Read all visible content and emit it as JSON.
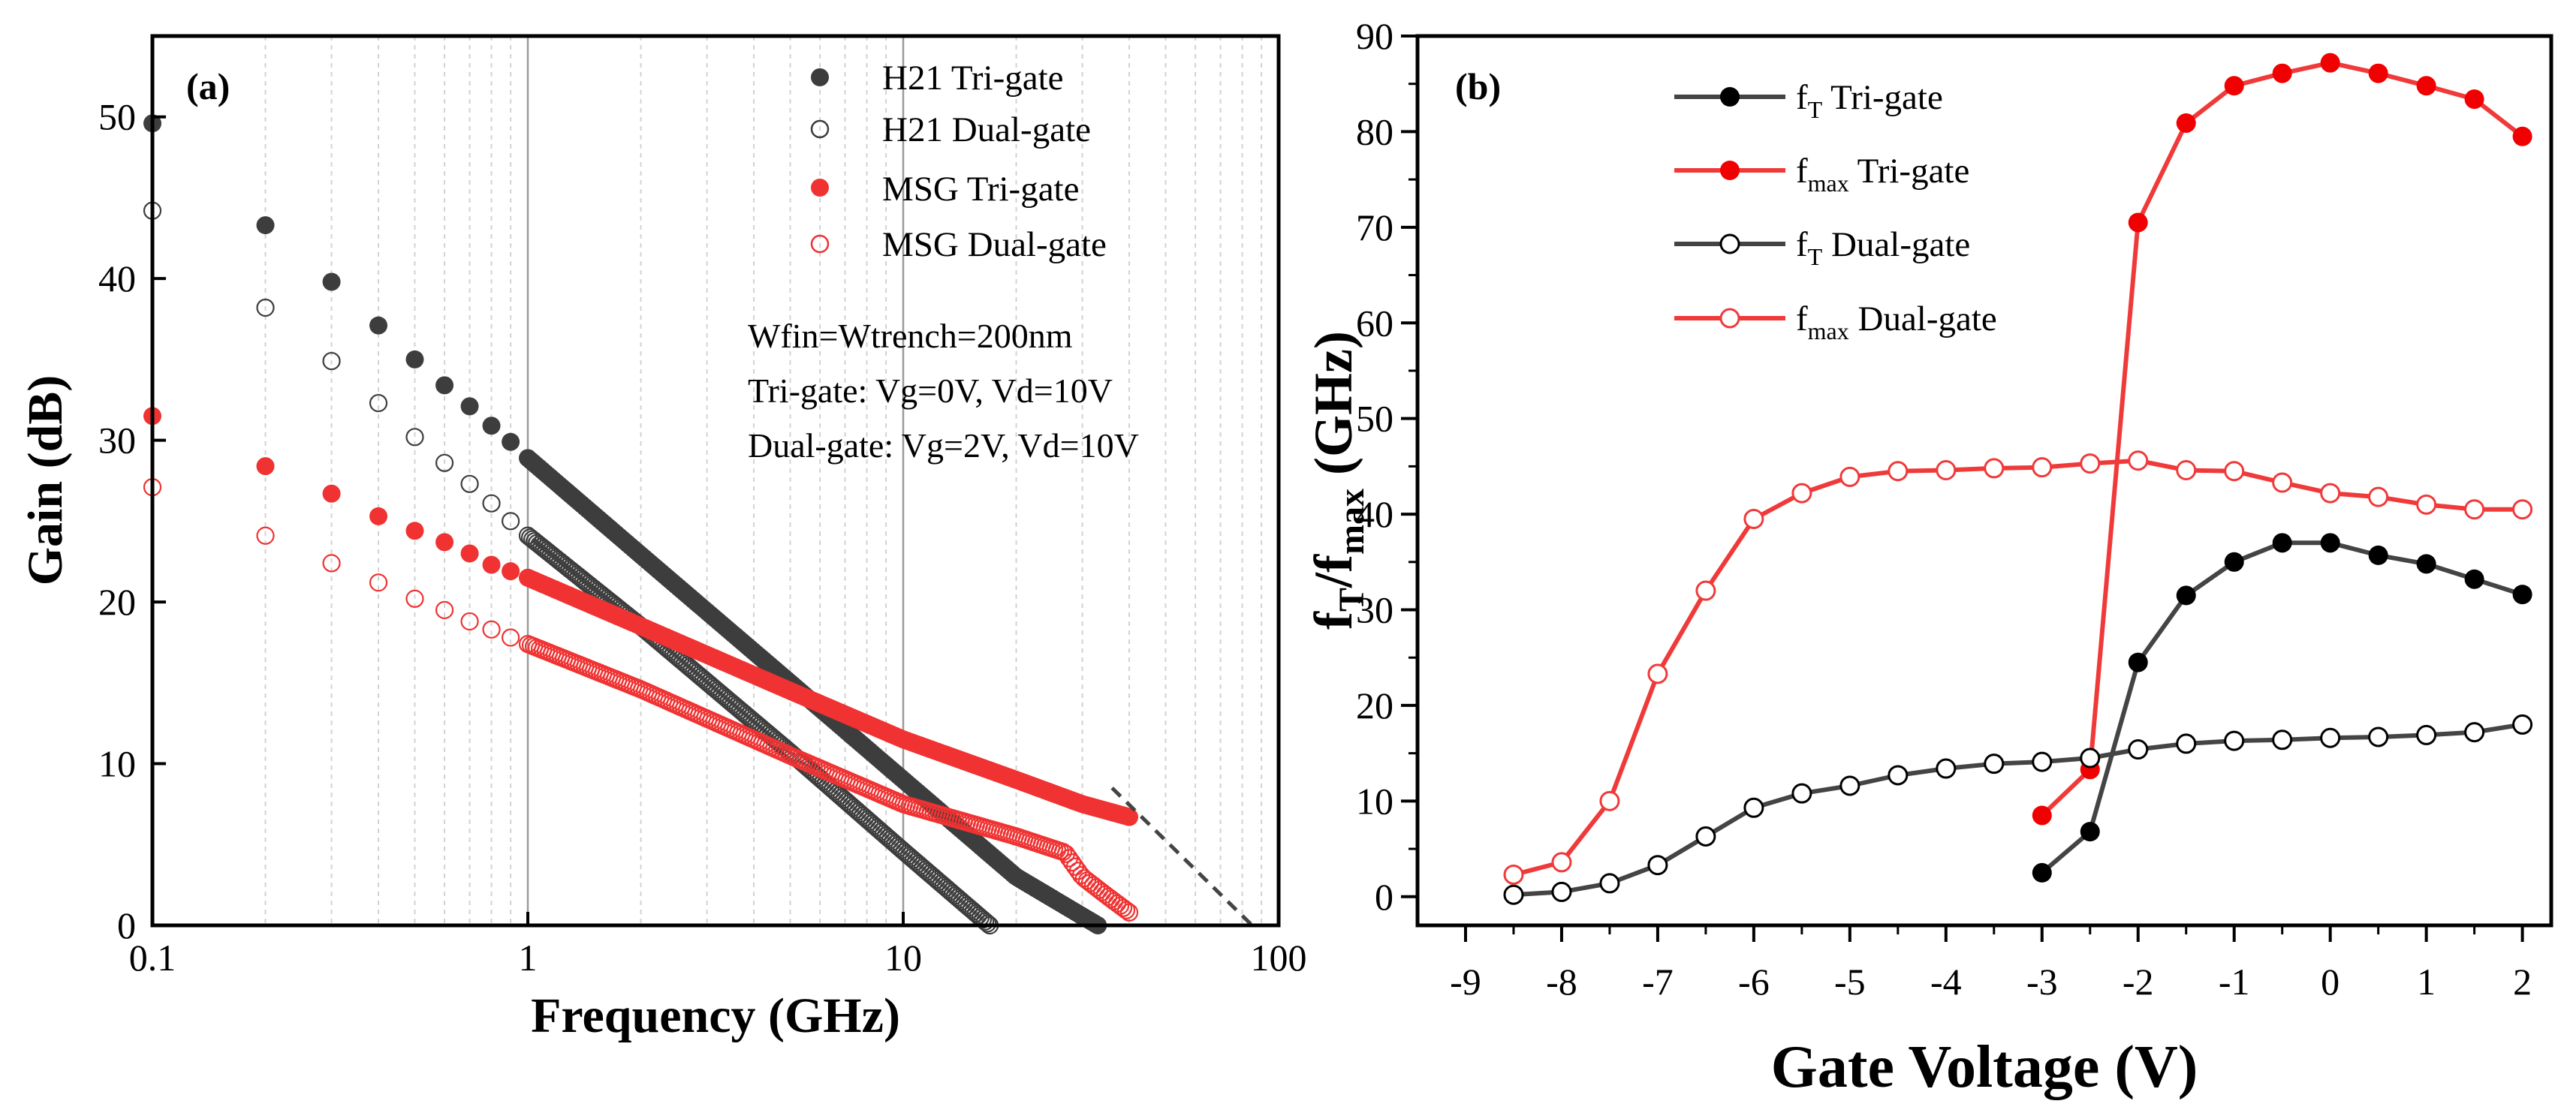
{
  "colors": {
    "tri_gate_h21": "#3d3d3d",
    "dual_gate_h21": "#3d3d3d",
    "msg": "#f03232",
    "ft_line": "#444444",
    "fmax_line": "#f03a3a",
    "grid": "#cfcfcf"
  },
  "chart_data": [
    {
      "panel_label": "(a)",
      "type": "scatter",
      "x_scale": "log",
      "xlabel": "Frequency (GHz)",
      "ylabel": "Gain (dB)",
      "xlim": [
        0.1,
        100
      ],
      "ylim": [
        0,
        55
      ],
      "x_ticks": [
        0.1,
        1,
        10,
        100
      ],
      "x_tick_labels": [
        "0.1",
        "1",
        "10",
        "100"
      ],
      "y_ticks": [
        0,
        10,
        20,
        30,
        40,
        50
      ],
      "y_tick_labels": [
        "0",
        "10",
        "20",
        "30",
        "40",
        "50"
      ],
      "grid": "vertical, log minor",
      "legend_position": "top-right",
      "annotations": [
        "Wfin=Wtrench=200nm",
        "Tri-gate: Vg=0V, Vd=10V",
        "Dual-gate: Vg=2V, Vd=10V"
      ],
      "series": [
        {
          "name": "H21 Tri-gate",
          "marker": "filled",
          "color": "#3d3d3d",
          "x": [
            0.1,
            0.2,
            0.3,
            0.4,
            0.5,
            0.6,
            0.7,
            0.8,
            0.9,
            1.0,
            2.0,
            5.0,
            10.0,
            20.0,
            33.0
          ],
          "y": [
            49.6,
            43.3,
            39.8,
            37.1,
            35.0,
            33.4,
            32.1,
            30.9,
            29.9,
            28.9,
            22.9,
            15.0,
            9.0,
            3.0,
            0.0
          ]
        },
        {
          "name": "H21 Dual-gate",
          "marker": "open",
          "color": "#3d3d3d",
          "x": [
            0.1,
            0.2,
            0.3,
            0.4,
            0.5,
            0.6,
            0.7,
            0.8,
            0.9,
            1.0,
            2.0,
            5.0,
            10.0,
            17.0
          ],
          "y": [
            44.2,
            38.2,
            34.9,
            32.3,
            30.2,
            28.6,
            27.3,
            26.1,
            25.0,
            24.1,
            18.5,
            10.7,
            4.6,
            0.0
          ]
        },
        {
          "name": "MSG Tri-gate",
          "marker": "filled",
          "color": "#f03232",
          "x": [
            0.1,
            0.2,
            0.3,
            0.4,
            0.5,
            0.6,
            0.7,
            0.8,
            0.9,
            1.0,
            2.0,
            5.0,
            10.0,
            20.0,
            30.0,
            40.0
          ],
          "y": [
            31.5,
            28.4,
            26.7,
            25.3,
            24.4,
            23.7,
            23.0,
            22.3,
            21.9,
            21.5,
            18.5,
            14.5,
            11.5,
            9.0,
            7.5,
            6.7
          ]
        },
        {
          "name": "MSG Dual-gate",
          "marker": "open",
          "color": "#f03232",
          "x": [
            0.1,
            0.2,
            0.3,
            0.4,
            0.5,
            0.6,
            0.7,
            0.8,
            0.9,
            1.0,
            2.0,
            5.0,
            10.0,
            20.0,
            27.0,
            30.0,
            35.0,
            40.0
          ],
          "y": [
            27.1,
            24.1,
            22.4,
            21.2,
            20.2,
            19.5,
            18.8,
            18.3,
            17.8,
            17.4,
            14.6,
            10.5,
            7.5,
            5.5,
            4.5,
            3.0,
            1.8,
            0.8
          ]
        }
      ],
      "extrapolation": {
        "x": [
          36,
          85
        ],
        "y": [
          8.5,
          0
        ]
      }
    },
    {
      "panel_label": "(b)",
      "type": "line",
      "xlabel": "Gate Voltage (V)",
      "ylabel_main": "f",
      "ylabel_sub1": "T",
      "ylabel_sep": "/f",
      "ylabel_sub2": "max",
      "ylabel_unit": " (GHz)",
      "xlim": [
        -9.5,
        2.3
      ],
      "ylim": [
        -3,
        90
      ],
      "x_ticks": [
        -9,
        -8,
        -7,
        -6,
        -5,
        -4,
        -3,
        -2,
        -1,
        0,
        1,
        2
      ],
      "x_tick_labels": [
        "-9",
        "-8",
        "-7",
        "-6",
        "-5",
        "-4",
        "-3",
        "-2",
        "-1",
        "0",
        "1",
        "2"
      ],
      "y_ticks": [
        0,
        10,
        20,
        30,
        40,
        50,
        60,
        70,
        80,
        90
      ],
      "y_tick_labels": [
        "0",
        "10",
        "20",
        "30",
        "40",
        "50",
        "60",
        "70",
        "80",
        "90"
      ],
      "grid": false,
      "legend_position": "top-left",
      "series": [
        {
          "name_main": "f",
          "name_sub": "T",
          "name_rest": " Tri-gate",
          "marker": "filled",
          "color": "#444444",
          "x": [
            -3,
            -2.5,
            -2,
            -1.5,
            -1,
            -0.5,
            0,
            0.5,
            1,
            1.5,
            2
          ],
          "y": [
            2.5,
            6.8,
            24.5,
            31.5,
            35.0,
            37.0,
            37.0,
            35.7,
            34.8,
            33.2,
            31.6
          ]
        },
        {
          "name_main": "f",
          "name_sub": "max",
          "name_rest": " Tri-gate",
          "marker": "filled",
          "color": "#f03a3a",
          "x": [
            -3,
            -2.5,
            -2,
            -1.5,
            -1,
            -0.5,
            0,
            0.5,
            1,
            1.5,
            2
          ],
          "y": [
            8.5,
            13.3,
            70.5,
            80.9,
            84.8,
            86.1,
            87.2,
            86.1,
            84.8,
            83.4,
            79.5
          ]
        },
        {
          "name_main": "f",
          "name_sub": "T",
          "name_rest": " Dual-gate",
          "marker": "open",
          "color": "#444444",
          "x": [
            -8.5,
            -8,
            -7.5,
            -7,
            -6.5,
            -6,
            -5.5,
            -5,
            -4.5,
            -4,
            -3.5,
            -3,
            -2.5,
            -2,
            -1.5,
            -1,
            -0.5,
            0,
            0.5,
            1,
            1.5,
            2
          ],
          "y": [
            0.2,
            0.5,
            1.4,
            3.3,
            6.3,
            9.3,
            10.8,
            11.6,
            12.7,
            13.4,
            13.9,
            14.1,
            14.5,
            15.4,
            16.0,
            16.3,
            16.4,
            16.6,
            16.7,
            16.9,
            17.2,
            18.0
          ]
        },
        {
          "name_main": "f",
          "name_sub": "max",
          "name_rest": " Dual-gate",
          "marker": "open",
          "color": "#f03a3a",
          "x": [
            -8.5,
            -8,
            -7.5,
            -7,
            -6.5,
            -6,
            -5.5,
            -5,
            -4.5,
            -4,
            -3.5,
            -3,
            -2.5,
            -2,
            -1.5,
            -1,
            -0.5,
            0,
            0.5,
            1,
            1.5,
            2
          ],
          "y": [
            2.3,
            3.6,
            10.0,
            23.3,
            32.0,
            39.5,
            42.2,
            43.9,
            44.5,
            44.6,
            44.8,
            44.9,
            45.3,
            45.6,
            44.6,
            44.5,
            43.3,
            42.2,
            41.8,
            41.0,
            40.5,
            40.5
          ]
        }
      ]
    }
  ]
}
